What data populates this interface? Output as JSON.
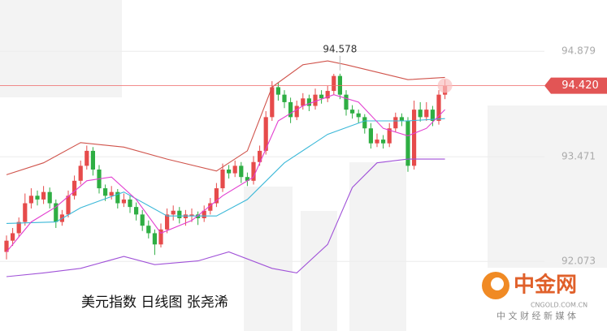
{
  "chart_data": {
    "type": "candlestick",
    "caption": "美元指数 日线图 张尧浠",
    "open": [
      92.2,
      92.35,
      92.45,
      92.6,
      92.85,
      92.95,
      92.9,
      93.0,
      92.85,
      92.6,
      92.7,
      92.95,
      93.15,
      93.35,
      93.55,
      93.3,
      93.05,
      92.95,
      93.0,
      92.85,
      92.9,
      92.8,
      92.7,
      92.55,
      92.45,
      92.3,
      92.5,
      92.7,
      92.75,
      92.65,
      92.68,
      92.7,
      92.65,
      92.75,
      92.85,
      93.05,
      93.3,
      93.25,
      93.35,
      93.2,
      93.15,
      93.4,
      93.55,
      94.0,
      94.4,
      94.3,
      94.2,
      94.0,
      94.15,
      94.25,
      94.15,
      94.3,
      94.25,
      94.35,
      94.55,
      94.3,
      94.1,
      94.05,
      94.0,
      93.85,
      93.65,
      93.7,
      93.65,
      93.85,
      94.0,
      93.95,
      93.35,
      94.1,
      94.0,
      94.1,
      93.95,
      94.3
    ],
    "high": [
      92.42,
      92.52,
      92.66,
      92.98,
      93.05,
      93.02,
      93.08,
      93.06,
      92.9,
      92.76,
      93.02,
      93.22,
      93.42,
      93.62,
      93.6,
      93.36,
      93.1,
      93.08,
      93.04,
      92.98,
      92.95,
      92.86,
      92.76,
      92.62,
      92.5,
      92.58,
      92.78,
      92.82,
      92.8,
      92.76,
      92.78,
      92.74,
      92.82,
      92.92,
      93.12,
      93.38,
      93.36,
      93.42,
      93.4,
      93.26,
      93.48,
      93.62,
      94.08,
      94.48,
      94.46,
      94.36,
      94.26,
      94.22,
      94.32,
      94.3,
      94.38,
      94.36,
      94.42,
      94.578,
      94.58,
      94.36,
      94.16,
      94.1,
      94.04,
      93.92,
      93.78,
      93.76,
      93.92,
      94.06,
      94.05,
      94.0,
      94.22,
      94.2,
      94.2,
      94.15,
      94.36,
      94.5
    ],
    "low": [
      92.1,
      92.28,
      92.4,
      92.55,
      92.78,
      92.82,
      92.84,
      92.78,
      92.52,
      92.55,
      92.66,
      92.9,
      93.1,
      93.3,
      93.22,
      92.98,
      92.88,
      92.9,
      92.78,
      92.8,
      92.72,
      92.62,
      92.48,
      92.38,
      92.16,
      92.26,
      92.45,
      92.62,
      92.58,
      92.55,
      92.6,
      92.56,
      92.6,
      92.7,
      92.8,
      93.0,
      93.18,
      93.2,
      93.12,
      93.08,
      93.1,
      93.35,
      93.5,
      93.95,
      94.22,
      94.12,
      93.92,
      93.96,
      94.1,
      94.08,
      94.1,
      94.18,
      94.2,
      94.3,
      94.24,
      94.02,
      93.98,
      93.92,
      93.78,
      93.58,
      93.6,
      93.58,
      93.6,
      93.8,
      93.88,
      93.27,
      93.3,
      93.94,
      93.95,
      93.88,
      93.9,
      94.24
    ],
    "close": [
      92.35,
      92.45,
      92.6,
      92.85,
      92.95,
      92.9,
      93.0,
      92.85,
      92.6,
      92.7,
      92.95,
      93.15,
      93.35,
      93.55,
      93.3,
      93.05,
      92.95,
      93.0,
      92.85,
      92.9,
      92.8,
      92.7,
      92.55,
      92.45,
      92.3,
      92.5,
      92.7,
      92.75,
      92.65,
      92.7,
      92.7,
      92.65,
      92.75,
      92.85,
      93.05,
      93.3,
      93.25,
      93.35,
      93.2,
      93.15,
      93.4,
      93.55,
      94.0,
      94.4,
      94.3,
      94.2,
      94.0,
      94.15,
      94.25,
      94.15,
      94.3,
      94.25,
      94.35,
      94.55,
      94.3,
      94.1,
      94.05,
      94.0,
      93.85,
      93.65,
      93.7,
      93.65,
      93.85,
      94.0,
      93.95,
      93.35,
      94.1,
      94.0,
      94.1,
      93.95,
      94.3,
      94.42
    ],
    "up_color": "#e64b4b",
    "down_color": "#2eae43",
    "lines": [
      {
        "color": "#d0534b",
        "x": [
          0,
          6,
          12,
          19,
          26,
          34,
          39,
          43,
          48,
          52,
          55,
          61,
          65,
          71
        ],
        "values": [
          93.23,
          93.39,
          93.66,
          93.6,
          93.44,
          93.28,
          93.55,
          94.4,
          94.7,
          94.75,
          94.7,
          94.58,
          94.5,
          94.53
        ]
      },
      {
        "color": "#3bb8d8",
        "x": [
          0,
          8,
          12,
          19,
          26,
          34,
          39,
          45,
          52,
          58,
          65,
          71
        ],
        "values": [
          92.58,
          92.6,
          92.79,
          93.0,
          92.68,
          92.68,
          92.9,
          93.39,
          93.77,
          93.95,
          93.95,
          93.98
        ]
      },
      {
        "color": "#a052d8",
        "x": [
          0,
          6,
          12,
          19,
          24,
          31,
          36,
          43,
          47,
          52,
          56,
          60,
          65,
          71
        ],
        "values": [
          91.87,
          91.92,
          91.98,
          92.14,
          92.03,
          92.08,
          92.2,
          91.98,
          91.92,
          92.3,
          93.06,
          93.39,
          93.44,
          93.44
        ]
      },
      {
        "color": "#e23fd0",
        "x": [
          0,
          4,
          8,
          13,
          17,
          21,
          25,
          30,
          35,
          40,
          44,
          48,
          53,
          57,
          61,
          65,
          68,
          71
        ],
        "values": [
          92.2,
          92.6,
          92.8,
          93.15,
          93.2,
          92.9,
          92.45,
          92.62,
          92.95,
          93.2,
          93.95,
          94.15,
          94.3,
          94.2,
          93.85,
          93.75,
          93.85,
          94.1
        ]
      }
    ],
    "high_label": "94.578",
    "last_price": 94.42,
    "last_label": "94.420",
    "ylim": [
      91.144,
      95.564
    ],
    "yticks": [
      92.073,
      93.471,
      94.879
    ],
    "grid": true,
    "logo": {
      "name": "中金网",
      "domain": "CNGOLD.COM.CN",
      "tagline": "中 文 财 经 新 媒 体"
    }
  }
}
